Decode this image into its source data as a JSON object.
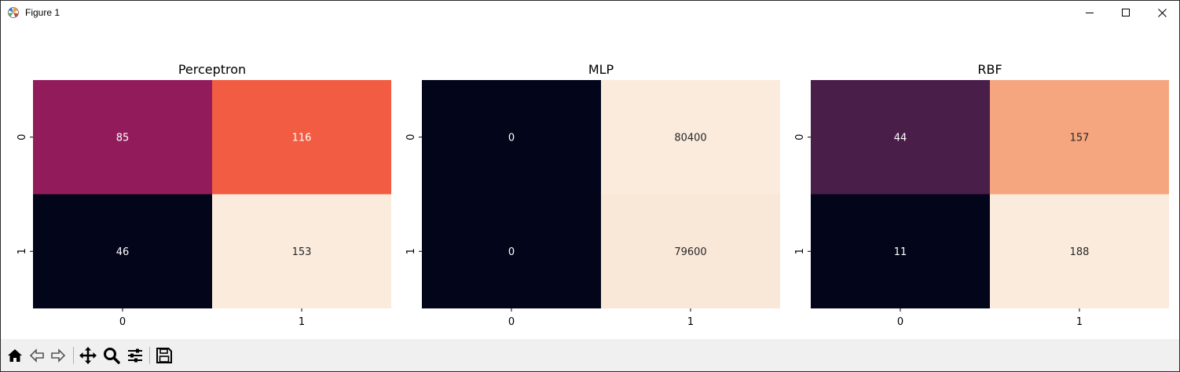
{
  "window": {
    "title": "Figure 1"
  },
  "toolbar": {
    "buttons": [
      {
        "name": "home-icon"
      },
      {
        "name": "back-icon"
      },
      {
        "name": "forward-icon"
      },
      {
        "name": "pan-icon"
      },
      {
        "name": "zoom-icon"
      },
      {
        "name": "configure-subplots-icon"
      },
      {
        "name": "save-icon"
      }
    ]
  },
  "chart_data": [
    {
      "type": "heatmap",
      "title": "Perceptron",
      "x_ticks": [
        "0",
        "1"
      ],
      "y_ticks": [
        "0",
        "1"
      ],
      "values": [
        [
          85,
          116
        ],
        [
          46,
          153
        ]
      ],
      "colormap": "rocket",
      "cell_colors": [
        [
          "#921c5b",
          "#f15c42"
        ],
        [
          "#03051a",
          "#faebdd"
        ]
      ],
      "text_colors": [
        [
          "#ffffff",
          "#ffffff"
        ],
        [
          "#ffffff",
          "#262626"
        ]
      ]
    },
    {
      "type": "heatmap",
      "title": "MLP",
      "x_ticks": [
        "0",
        "1"
      ],
      "y_ticks": [
        "0",
        "1"
      ],
      "values": [
        [
          0,
          80400
        ],
        [
          0,
          79600
        ]
      ],
      "colormap": "rocket",
      "cell_colors": [
        [
          "#03051a",
          "#faebdd"
        ],
        [
          "#03051a",
          "#f9e7d8"
        ]
      ],
      "text_colors": [
        [
          "#ffffff",
          "#262626"
        ],
        [
          "#ffffff",
          "#262626"
        ]
      ]
    },
    {
      "type": "heatmap",
      "title": "RBF",
      "x_ticks": [
        "0",
        "1"
      ],
      "y_ticks": [
        "0",
        "1"
      ],
      "values": [
        [
          44,
          157
        ],
        [
          11,
          188
        ]
      ],
      "colormap": "rocket",
      "cell_colors": [
        [
          "#491e48",
          "#f5a67e"
        ],
        [
          "#03051a",
          "#faebdd"
        ]
      ],
      "text_colors": [
        [
          "#ffffff",
          "#262626"
        ],
        [
          "#ffffff",
          "#262626"
        ]
      ]
    }
  ]
}
